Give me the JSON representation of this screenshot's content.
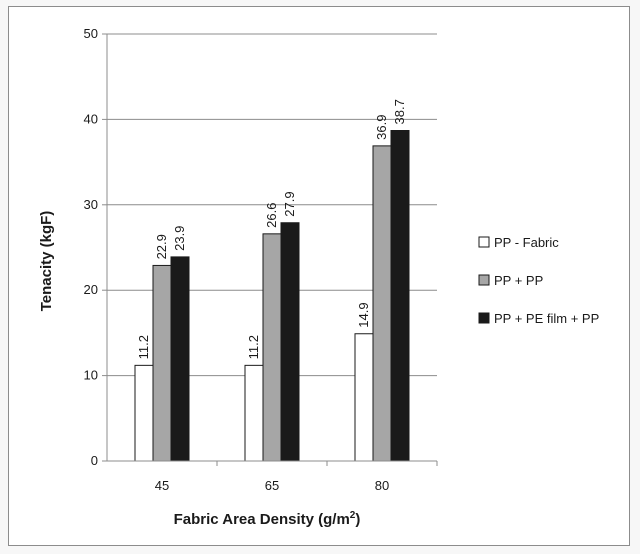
{
  "chart_data": {
    "type": "bar",
    "categories": [
      "45",
      "65",
      "80"
    ],
    "series": [
      {
        "name": "PP - Fabric",
        "values": [
          11.2,
          11.2,
          14.9
        ],
        "color": "#ffffff"
      },
      {
        "name": "PP + PP",
        "values": [
          22.9,
          26.6,
          36.9
        ],
        "color": "#a6a6a6"
      },
      {
        "name": "PP + PE film + PP",
        "values": [
          23.9,
          27.9,
          38.7
        ],
        "color": "#1a1a1a"
      }
    ],
    "data_labels": [
      [
        "11.2",
        "11.2",
        "14.9"
      ],
      [
        "22.9",
        "26.6",
        "36.9"
      ],
      [
        "23.9",
        "27.9",
        "38.7"
      ]
    ],
    "yticks": [
      "0",
      "10",
      "20",
      "30",
      "40",
      "50"
    ],
    "ylim": [
      0,
      50
    ],
    "xlabel_main": "Fabric Area Density (g/m",
    "xlabel_sup": "2",
    "xlabel_end": ")",
    "ylabel": "Tenacity (kgF)",
    "grid": true,
    "legend_position": "right"
  }
}
